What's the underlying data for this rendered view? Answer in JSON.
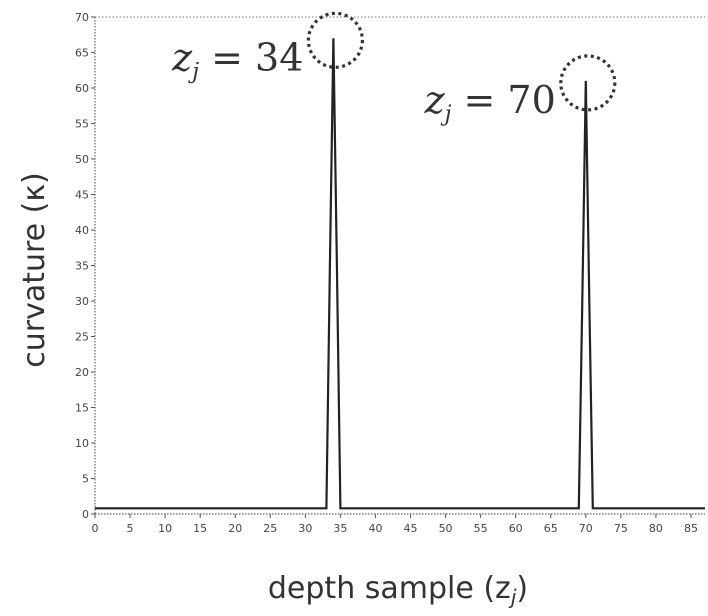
{
  "chart_data": {
    "type": "line",
    "title": "",
    "xlabel": "depth sample (z",
    "xlabel_sub": "j",
    "xlabel_close": ")",
    "ylabel": "curvature (κ)",
    "xlim": [
      0,
      87
    ],
    "ylim": [
      0,
      70
    ],
    "xticks": [
      0,
      5,
      10,
      15,
      20,
      25,
      30,
      35,
      40,
      45,
      50,
      55,
      60,
      65,
      70,
      75,
      80,
      85
    ],
    "yticks": [
      0,
      5,
      10,
      15,
      20,
      25,
      30,
      35,
      40,
      45,
      50,
      55,
      60,
      65,
      70
    ],
    "grid": false,
    "series": [
      {
        "x": [
          0,
          33,
          33.5,
          34,
          34.5,
          35,
          69,
          69.5,
          70,
          70.5,
          71,
          87
        ],
        "y": [
          0.8,
          0.8,
          35,
          67,
          35,
          0.8,
          0.8,
          30,
          61,
          30,
          0.8,
          0.8
        ]
      }
    ],
    "annotations": [
      {
        "var": "z",
        "sub": "j",
        "eq": " = 34",
        "x": 34,
        "y": 67
      },
      {
        "var": "z",
        "sub": "j",
        "eq": " = 70",
        "x": 70,
        "y": 61
      }
    ],
    "colors": {
      "line": "#222222",
      "marker": "#333333",
      "axis": "#666666"
    }
  }
}
